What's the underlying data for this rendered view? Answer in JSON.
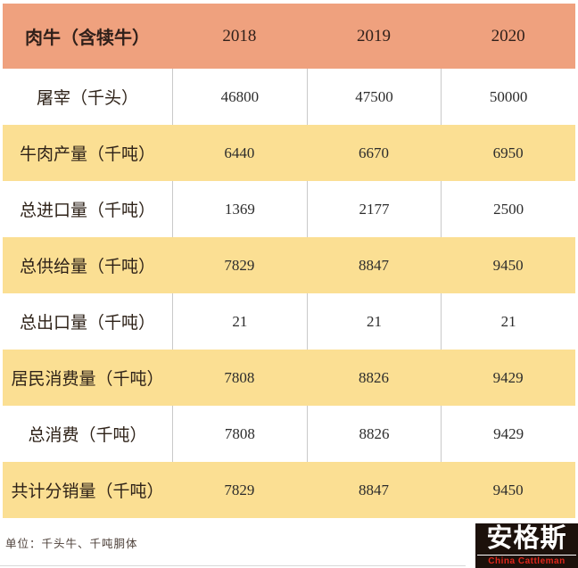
{
  "colors": {
    "header_bg": "#efa17e",
    "stripe_bg": "#fbdf93",
    "row_bg": "#ffffff",
    "divider": "#c9c9c9",
    "text": "#2e2218",
    "logo_bg": "#1c110b",
    "logo_text": "#ffffff",
    "logo_subtitle_red": "#e2271c"
  },
  "chart_data": {
    "type": "table",
    "title": "肉牛（含犊牛）",
    "columns": [
      "2018",
      "2019",
      "2020"
    ],
    "rows": [
      {
        "label": "屠宰（千头）",
        "values": [
          46800,
          47500,
          50000
        ]
      },
      {
        "label": "牛肉产量（千吨）",
        "values": [
          6440,
          6670,
          6950
        ]
      },
      {
        "label": "总进口量（千吨）",
        "values": [
          1369,
          2177,
          2500
        ]
      },
      {
        "label": "总供给量（千吨）",
        "values": [
          7829,
          8847,
          9450
        ]
      },
      {
        "label": "总出口量（千吨）",
        "values": [
          21,
          21,
          21
        ]
      },
      {
        "label": "居民消费量（千吨）",
        "values": [
          7808,
          8826,
          9429
        ]
      },
      {
        "label": "总消费（千吨）",
        "values": [
          7808,
          8826,
          9429
        ]
      },
      {
        "label": "共计分销量（千吨）",
        "values": [
          7829,
          8847,
          9450
        ]
      }
    ],
    "annotation": "单位：千头牛、千吨胴体",
    "layout": "rows alternate white and yellow starting with white; column dividers only on white rows"
  },
  "logo": {
    "name": "安格斯",
    "subtitle": "China Cattleman"
  }
}
